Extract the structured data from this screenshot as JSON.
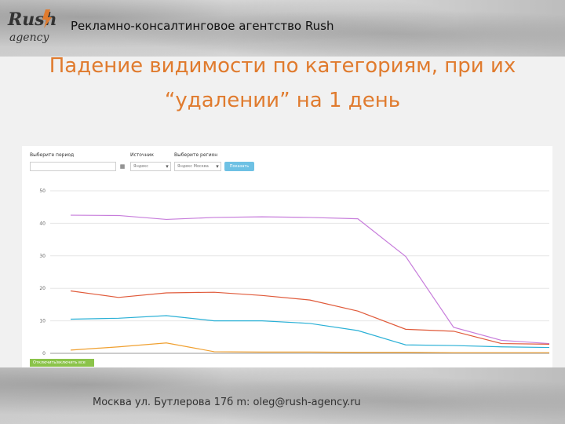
{
  "header": {
    "logo_text": "Rush agency",
    "agency_name": "Рекламно-консалтинговое агентство Rush"
  },
  "slide": {
    "title_line1": "Падение видимости по категориям, при их",
    "title_line2": "“удалении” на 1 день"
  },
  "controls": {
    "period_label": "Выберите период",
    "period_value": "",
    "source_label": "Источник",
    "source_value": "Яндекс",
    "region_label": "Выберите регион",
    "region_value": "Яндекс Москва",
    "submit_label": "Показать"
  },
  "chart_data": {
    "type": "line",
    "title": "",
    "xlabel": "",
    "ylabel": "",
    "ylim": [
      0,
      50
    ],
    "yticks": [
      "50",
      "40",
      "30",
      "20",
      "10",
      "0"
    ],
    "grid": true,
    "x": [
      1,
      2,
      3,
      4,
      5,
      6,
      7,
      8,
      9,
      10,
      11
    ],
    "series": [
      {
        "color": "#c77ddb",
        "values": [
          42.5,
          42.4,
          41.2,
          41.8,
          42.0,
          41.8,
          41.4,
          29.8,
          8.0,
          4.0,
          3.0
        ]
      },
      {
        "color": "#e05a3a",
        "values": [
          19.2,
          17.2,
          18.6,
          18.8,
          17.8,
          16.4,
          13.0,
          7.4,
          6.8,
          3.0,
          2.8
        ]
      },
      {
        "color": "#2ab0d6",
        "values": [
          10.5,
          10.8,
          11.6,
          10.0,
          10.0,
          9.2,
          7.0,
          2.6,
          2.4,
          2.0,
          1.8
        ]
      },
      {
        "color": "#f0a030",
        "values": [
          1.0,
          2.0,
          3.2,
          0.5,
          0.4,
          0.4,
          0.3,
          0.3,
          0.2,
          0.2,
          0.2
        ]
      }
    ]
  },
  "legend_button": "Отключить/включить все",
  "footer": {
    "address": "Москва ул. Бутлерова 17б  m: oleg@rush-agency.ru"
  }
}
